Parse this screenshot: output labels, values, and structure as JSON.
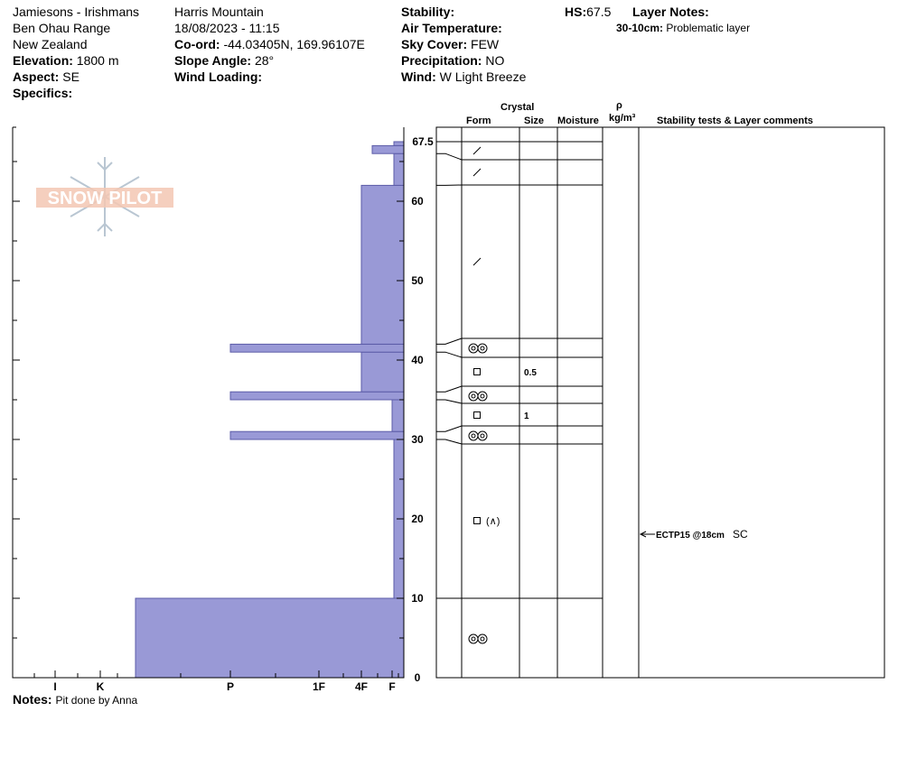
{
  "header": {
    "col1": {
      "location": "Jamiesons - Irishmans",
      "range": "Ben Ohau Range",
      "country": "New Zealand",
      "elevation_label": "Elevation:",
      "elevation_value": "1800 m",
      "aspect_label": "Aspect:",
      "aspect_value": "SE",
      "specifics_label": "Specifics:"
    },
    "col2": {
      "site": "Harris Mountain",
      "datetime": "18/08/2023 - 11:15",
      "coord_label": "Co-ord:",
      "coord_value": "-44.03405N, 169.96107E",
      "slope_label": "Slope Angle:",
      "slope_value": "28°",
      "wind_loading_label": "Wind Loading:"
    },
    "col3": {
      "stability_label": "Stability:",
      "air_temp_label": "Air Temperature:",
      "sky_label": "Sky Cover:",
      "sky_value": "FEW",
      "precip_label": "Precipitation:",
      "precip_value": "NO",
      "wind_label": "Wind:",
      "wind_value": "W Light Breeze"
    },
    "hs_label": "HS:",
    "hs_value": "67.5",
    "layer_notes_label": "Layer Notes:",
    "layer_note_range": "30-10cm:",
    "layer_note_text": "Problematic layer"
  },
  "notes_label": "Notes:",
  "notes_text": "Pit done by Anna",
  "logo_text": "SNOW PILOT",
  "table_headers": {
    "crystal": "Crystal",
    "form": "Form",
    "size": "Size",
    "moisture": "Moisture",
    "rho": "ρ",
    "density_unit": "kg/m³",
    "stability": "Stability tests & Layer comments"
  },
  "colors": {
    "hardness_fill": "#9999d6",
    "hardness_stroke": "#5c5ca8",
    "logo": "#f3c7b3"
  },
  "chart_data": {
    "type": "bar",
    "title": "",
    "xlabel": "",
    "ylabel": "",
    "ylim": [
      0,
      69.5
    ],
    "hardness_categories": [
      "I",
      "K",
      "P",
      "1F",
      "4F",
      "F"
    ],
    "y_ticks": [
      0,
      10,
      20,
      30,
      40,
      50,
      60
    ],
    "hs_tick": "67.5",
    "hardness_profile": [
      {
        "bottom": 0,
        "top": 10,
        "hardness": "P-"
      },
      {
        "bottom": 10,
        "top": 30,
        "hardness": "F+"
      },
      {
        "bottom": 30,
        "top": 31,
        "hardness": "P"
      },
      {
        "bottom": 31,
        "top": 35,
        "hardness": "F"
      },
      {
        "bottom": 35,
        "top": 36,
        "hardness": "P"
      },
      {
        "bottom": 36,
        "top": 41,
        "hardness": "4F"
      },
      {
        "bottom": 41,
        "top": 42,
        "hardness": "P"
      },
      {
        "bottom": 42,
        "top": 62,
        "hardness": "4F"
      },
      {
        "bottom": 62,
        "top": 66,
        "hardness": "F+"
      },
      {
        "bottom": 66,
        "top": 67,
        "hardness": "F-"
      },
      {
        "bottom": 67,
        "top": 67.5,
        "hardness": "F+"
      }
    ],
    "layer_boundaries": [
      0,
      10,
      30,
      31,
      35,
      36,
      41,
      42,
      62,
      66,
      67.5
    ],
    "crystal_layers": [
      {
        "height": 66.5,
        "form": "decomposing-fragments",
        "size": ""
      },
      {
        "height": 64.5,
        "form": "decomposing-fragments",
        "size": ""
      },
      {
        "height": 52,
        "form": "decomposing-fragments",
        "size": ""
      },
      {
        "height": 41.5,
        "form": "melt-forms",
        "size": ""
      },
      {
        "height": 38.5,
        "form": "faceted",
        "size": "0.5"
      },
      {
        "height": 35.5,
        "form": "melt-forms",
        "size": ""
      },
      {
        "height": 33,
        "form": "faceted",
        "size": "1"
      },
      {
        "height": 30.5,
        "form": "melt-forms",
        "size": ""
      },
      {
        "height": 20,
        "form": "faceted-depth-hoar",
        "size": "",
        "secondary": "(∧)"
      },
      {
        "height": 5,
        "form": "melt-forms",
        "size": ""
      }
    ],
    "stability_tests": [
      {
        "height": 18,
        "label": "ECTP15 @18cm",
        "note": "SC"
      }
    ]
  }
}
